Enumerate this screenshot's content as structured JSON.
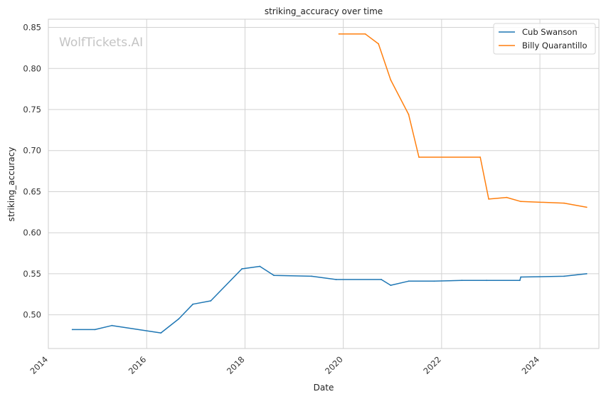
{
  "chart_data": {
    "type": "line",
    "title": "striking_accuracy over time",
    "xlabel": "Date",
    "ylabel": "striking_accuracy",
    "watermark": "WolfTickets.AI",
    "xlim": [
      2014.0,
      2025.2
    ],
    "ylim": [
      0.459,
      0.86
    ],
    "x_ticks": [
      2014,
      2016,
      2018,
      2020,
      2022,
      2024
    ],
    "y_ticks": [
      0.5,
      0.55,
      0.6,
      0.65,
      0.7,
      0.75,
      0.8,
      0.85
    ],
    "grid": true,
    "legend_position": "top-right",
    "series": [
      {
        "name": "Cub Swanson",
        "color": "#1f77b4",
        "points": [
          [
            "2014-06-28",
            0.482
          ],
          [
            "2014-12-13",
            0.482
          ],
          [
            "2015-04-18",
            0.487
          ],
          [
            "2016-04-16",
            0.478
          ],
          [
            "2016-08-27",
            0.495
          ],
          [
            "2016-12-10",
            0.513
          ],
          [
            "2017-04-22",
            0.517
          ],
          [
            "2017-12-09",
            0.556
          ],
          [
            "2018-04-21",
            0.559
          ],
          [
            "2018-08-04",
            0.548
          ],
          [
            "2019-05-11",
            0.547
          ],
          [
            "2019-11-09",
            0.543
          ],
          [
            "2020-10-10",
            0.543
          ],
          [
            "2020-12-19",
            0.536
          ],
          [
            "2021-05-01",
            0.541
          ],
          [
            "2021-11-06",
            0.541
          ],
          [
            "2022-06-01",
            0.542
          ],
          [
            "2022-12-01",
            0.542
          ],
          [
            "2023-08-05",
            0.542
          ],
          [
            "2023-08-12",
            0.546
          ],
          [
            "2024-06-29",
            0.547
          ],
          [
            "2024-12-14",
            0.55
          ]
        ]
      },
      {
        "name": "Billy Quarantillo",
        "color": "#ff7f0e",
        "points": [
          [
            "2019-11-30",
            0.842
          ],
          [
            "2020-06-13",
            0.842
          ],
          [
            "2020-09-19",
            0.83
          ],
          [
            "2020-12-19",
            0.786
          ],
          [
            "2021-05-01",
            0.744
          ],
          [
            "2021-07-17",
            0.692
          ],
          [
            "2022-10-15",
            0.692
          ],
          [
            "2022-12-17",
            0.641
          ],
          [
            "2023-04-29",
            0.643
          ],
          [
            "2023-08-12",
            0.638
          ],
          [
            "2024-06-29",
            0.636
          ],
          [
            "2024-12-14",
            0.631
          ]
        ]
      }
    ]
  }
}
